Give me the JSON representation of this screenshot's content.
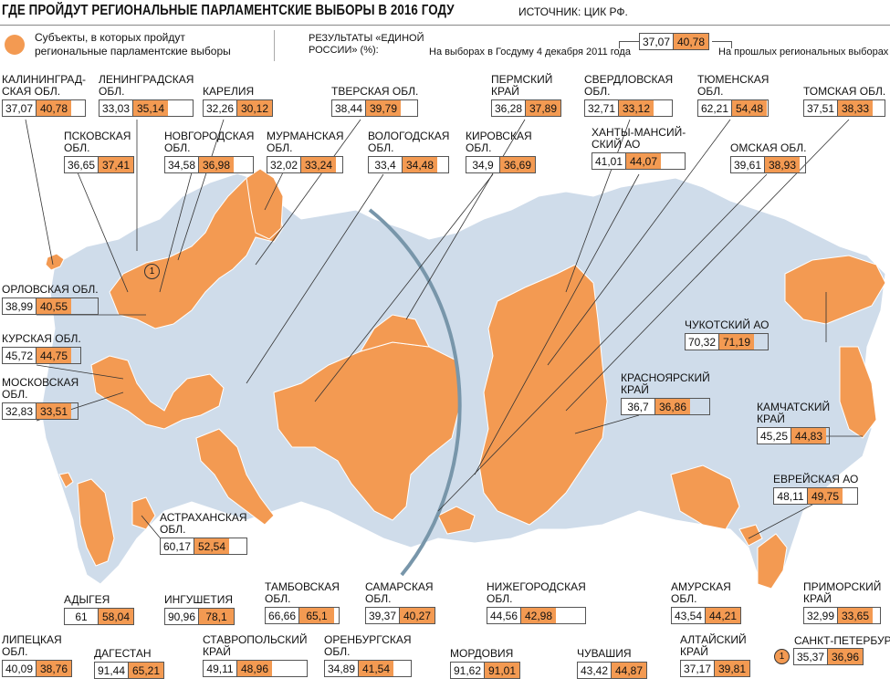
{
  "header": {
    "title": "ГДЕ ПРОЙДУТ РЕГИОНАЛЬНЫЕ  ПАРЛАМЕНТСКИЕ ВЫБОРЫ В 2016 ГОДУ",
    "source": "ИСТОЧНИК: ЦИК РФ."
  },
  "legend": {
    "subjects_text": "Субъекты, в которых пройдут региональные  парламентские выборы",
    "results_label": "РЕЗУЛЬТАТЫ «ЕДИНОЙ РОССИИ» (%):",
    "label_2011": "На выборах в Госдуму 4 декабря 2011 года",
    "label_prev": "На прошлых региональных выборах",
    "example_2011": "37,07",
    "example_prev": "40,78",
    "highlight_color": "#f39a52",
    "base_map_color": "#cfdcea"
  },
  "regions": [
    {
      "id": "kaliningrad",
      "name": "КАЛИНИНГРАД-\nСКАЯ ОБЛ.",
      "v2011": "37,07",
      "vprev": "40,78"
    },
    {
      "id": "leningrad",
      "name": "ЛЕНИНГРАДСКАЯ\nОБЛ.",
      "v2011": "33,03",
      "vprev": "35,14"
    },
    {
      "id": "karelia",
      "name": "КАРЕЛИЯ",
      "v2011": "32,26",
      "vprev": "30,12"
    },
    {
      "id": "tver",
      "name": "ТВЕРСКАЯ ОБЛ.",
      "v2011": "38,44",
      "vprev": "39,79"
    },
    {
      "id": "perm",
      "name": "ПЕРМСКИЙ\nКРАЙ",
      "v2011": "36,28",
      "vprev": "37,89"
    },
    {
      "id": "sverdlovsk",
      "name": "СВЕРДЛОВСКАЯ\nОБЛ.",
      "v2011": "32,71",
      "vprev": "33,12"
    },
    {
      "id": "tyumen",
      "name": "ТЮМЕНСКАЯ\nОБЛ.",
      "v2011": "62,21",
      "vprev": "54,48"
    },
    {
      "id": "tomsk",
      "name": "ТОМСКАЯ ОБЛ.",
      "v2011": "37,51",
      "vprev": "38,33"
    },
    {
      "id": "pskov",
      "name": "ПСКОВСКАЯ\nОБЛ.",
      "v2011": "36,65",
      "vprev": "37,41"
    },
    {
      "id": "novgorod",
      "name": "НОВГОРОДСКАЯ\nОБЛ.",
      "v2011": "34,58",
      "vprev": "36,98"
    },
    {
      "id": "murmansk",
      "name": "МУРМАНСКАЯ\nОБЛ.",
      "v2011": "32,02",
      "vprev": "33,24"
    },
    {
      "id": "vologda",
      "name": "ВОЛОГОДСКАЯ\nОБЛ.",
      "v2011": "33,4",
      "vprev": "34,48"
    },
    {
      "id": "kirov",
      "name": "КИРОВСКАЯ\nОБЛ.",
      "v2011": "34,9",
      "vprev": "36,69"
    },
    {
      "id": "khmao",
      "name": "ХАНТЫ-МАНСИЙ-\nСКИЙ АО",
      "v2011": "41,01",
      "vprev": "44,07"
    },
    {
      "id": "omsk",
      "name": "ОМСКАЯ ОБЛ.",
      "v2011": "39,61",
      "vprev": "38,93"
    },
    {
      "id": "orel",
      "name": "ОРЛОВСКАЯ ОБЛ.",
      "v2011": "38,99",
      "vprev": "40,55"
    },
    {
      "id": "kursk",
      "name": "КУРСКАЯ ОБЛ.",
      "v2011": "45,72",
      "vprev": "44,75"
    },
    {
      "id": "moscow_obl",
      "name": "МОСКОВСКАЯ\nОБЛ.",
      "v2011": "32,83",
      "vprev": "33,51"
    },
    {
      "id": "chukotka",
      "name": "ЧУКОТСКИЙ АО",
      "v2011": "70,32",
      "vprev": "71,19"
    },
    {
      "id": "krasnoyarsk",
      "name": "КРАСНОЯРСКИЙ\nКРАЙ",
      "v2011": "36,7",
      "vprev": "36,86"
    },
    {
      "id": "kamchatka",
      "name": "КАМЧАТСКИЙ\nКРАЙ",
      "v2011": "45,25",
      "vprev": "44,83"
    },
    {
      "id": "astrakhan",
      "name": "АСТРАХАНСКАЯ\nОБЛ.",
      "v2011": "60,17",
      "vprev": "52,54"
    },
    {
      "id": "jewish_ao",
      "name": "ЕВРЕЙСКАЯ АО",
      "v2011": "48,11",
      "vprev": "49,75"
    },
    {
      "id": "adygea",
      "name": "АДЫГЕЯ",
      "v2011": "61",
      "vprev": "58,04"
    },
    {
      "id": "ingushetia",
      "name": "ИНГУШЕТИЯ",
      "v2011": "90,96",
      "vprev": "78,1"
    },
    {
      "id": "tambov",
      "name": "ТАМБОВСКАЯ\nОБЛ.",
      "v2011": "66,66",
      "vprev": "65,1"
    },
    {
      "id": "samara",
      "name": "САМАРСКАЯ\nОБЛ.",
      "v2011": "39,37",
      "vprev": "40,27"
    },
    {
      "id": "nizhny",
      "name": "НИЖЕГОРОДСКАЯ\nОБЛ.",
      "v2011": "44,56",
      "vprev": "42,98"
    },
    {
      "id": "amur",
      "name": "АМУРСКАЯ\nОБЛ.",
      "v2011": "43,54",
      "vprev": "44,21"
    },
    {
      "id": "primorye",
      "name": "ПРИМОРСКИЙ\nКРАЙ",
      "v2011": "32,99",
      "vprev": "33,65"
    },
    {
      "id": "lipetsk",
      "name": "ЛИПЕЦКАЯ\nОБЛ.",
      "v2011": "40,09",
      "vprev": "38,76"
    },
    {
      "id": "dagestan",
      "name": "ДАГЕСТАН",
      "v2011": "91,44",
      "vprev": "65,21"
    },
    {
      "id": "stavropol",
      "name": "СТАВРОПОЛЬСКИЙ\nКРАЙ",
      "v2011": "49,11",
      "vprev": "48,96"
    },
    {
      "id": "orenburg",
      "name": "ОРЕНБУРГСКАЯ\nОБЛ.",
      "v2011": "34,89",
      "vprev": "41,54"
    },
    {
      "id": "mordovia",
      "name": "МОРДОВИЯ",
      "v2011": "91,62",
      "vprev": "91,01"
    },
    {
      "id": "chuvashia",
      "name": "ЧУВАШИЯ",
      "v2011": "43,42",
      "vprev": "44,87"
    },
    {
      "id": "altai",
      "name": "АЛТАЙСКИЙ\nКРАЙ",
      "v2011": "37,17",
      "vprev": "39,81"
    },
    {
      "id": "spb",
      "name": "САНКТ-ПЕТЕРБУРГ",
      "v2011": "35,37",
      "vprev": "36,96",
      "marker": "1"
    }
  ],
  "map_markers": {
    "spb_map_marker": "1"
  }
}
